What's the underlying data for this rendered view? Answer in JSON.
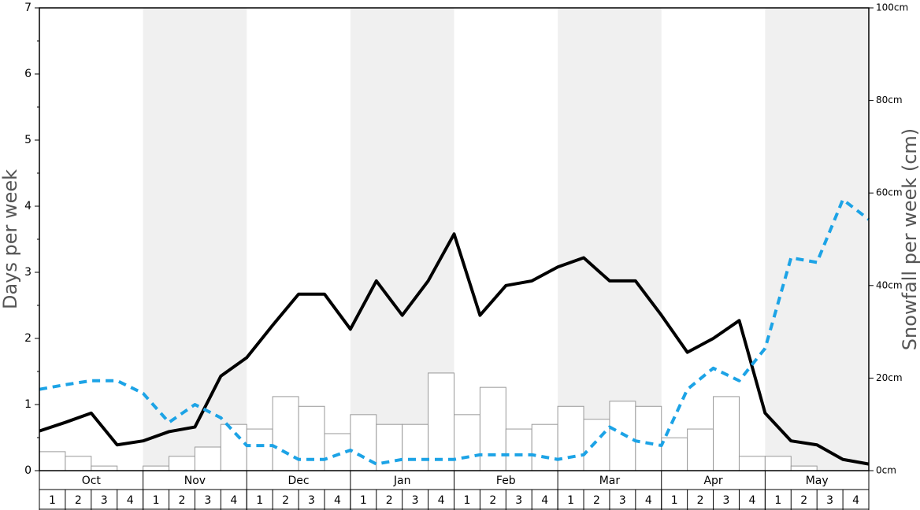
{
  "chart_data": {
    "type": "bar-line",
    "y_label": "Days per week",
    "y2_label": "Snowfall per week (cm)",
    "months": [
      "Oct",
      "Nov",
      "Dec",
      "Jan",
      "Feb",
      "Mar",
      "Apr",
      "May"
    ],
    "categories": [
      "1",
      "2",
      "3",
      "4",
      "1",
      "2",
      "3",
      "4",
      "1",
      "2",
      "3",
      "4",
      "1",
      "2",
      "3",
      "4",
      "1",
      "2",
      "3",
      "4",
      "1",
      "2",
      "3",
      "4",
      "1",
      "2",
      "3",
      "4",
      "1",
      "2",
      "3",
      "4"
    ],
    "xlim": [
      0,
      32
    ],
    "ylim": [
      0,
      7
    ],
    "yticks": [
      0,
      1,
      2,
      3,
      4,
      5,
      6,
      7
    ],
    "y2lim": [
      0,
      100
    ],
    "y2ticks": [
      {
        "value": 0,
        "label": "0cm"
      },
      {
        "value": 20,
        "label": "20cm"
      },
      {
        "value": 40,
        "label": "40cm"
      },
      {
        "value": 60,
        "label": "60cm"
      },
      {
        "value": 80,
        "label": "80cm"
      },
      {
        "value": 100,
        "label": "100cm"
      }
    ],
    "bars": {
      "axis": "y2",
      "color": "#ffffff",
      "values": [
        4.1,
        3.1,
        1.0,
        0,
        1.0,
        3.1,
        5.1,
        10.0,
        9.0,
        16.0,
        13.9,
        8.0,
        12.1,
        10.0,
        10.0,
        21.1,
        12.1,
        18.0,
        9.0,
        10.0,
        13.9,
        11.1,
        15.0,
        13.9,
        7.1,
        9.0,
        16.0,
        3.1,
        3.1,
        1.0,
        0,
        0
      ]
    },
    "series": [
      {
        "color": "#000000",
        "dashed": false,
        "axis": "y",
        "x": [
          0,
          1,
          2,
          3,
          4,
          5,
          6,
          7,
          8,
          9,
          10,
          11,
          12,
          13,
          14,
          15,
          16,
          17,
          18,
          19,
          20,
          21,
          22,
          23,
          24,
          25,
          26,
          27,
          28,
          29,
          30,
          31,
          32
        ],
        "values": [
          0.6,
          0.73,
          0.87,
          0.39,
          0.45,
          0.59,
          0.66,
          1.43,
          1.71,
          2.2,
          2.67,
          2.67,
          2.14,
          2.87,
          2.35,
          2.87,
          3.58,
          2.35,
          2.8,
          2.87,
          3.08,
          3.22,
          2.87,
          2.87,
          2.35,
          1.79,
          2.0,
          2.27,
          0.87,
          0.45,
          0.39,
          0.17,
          0.1
        ]
      },
      {
        "color": "#1ca3e6",
        "dashed": true,
        "axis": "y",
        "x": [
          0,
          1,
          2,
          3,
          4,
          5,
          6,
          7,
          8,
          9,
          10,
          11,
          12,
          13,
          14,
          15,
          16,
          17,
          18,
          19,
          20,
          21,
          22,
          23,
          24,
          25,
          26,
          27,
          28,
          29,
          30,
          31,
          32
        ],
        "values": [
          1.23,
          1.3,
          1.36,
          1.36,
          1.17,
          0.73,
          1.0,
          0.8,
          0.38,
          0.38,
          0.17,
          0.17,
          0.31,
          0.1,
          0.17,
          0.17,
          0.17,
          0.24,
          0.24,
          0.24,
          0.17,
          0.24,
          0.66,
          0.45,
          0.38,
          1.23,
          1.55,
          1.36,
          1.85,
          3.22,
          3.15,
          4.1,
          3.8
        ]
      }
    ]
  }
}
